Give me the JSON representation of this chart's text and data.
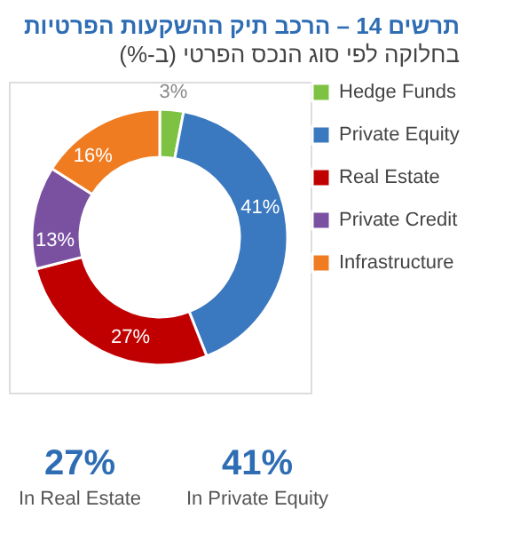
{
  "chart_data": {
    "type": "donut",
    "title": "תרשים 14 – הרכב תיק ההשקעות הפרטיות",
    "subtitle": "בחלוקה לפי סוג הנכס הפרטי (ב-%)",
    "categories": [
      "Hedge Funds",
      "Private Equity",
      "Real Estate",
      "Private Credit",
      "Infrastructure"
    ],
    "values": [
      3,
      41,
      27,
      13,
      16
    ],
    "colors": [
      "#7dc242",
      "#3a78bf",
      "#c00000",
      "#7a51a1",
      "#f07c22"
    ],
    "value_labels": [
      "3%",
      "41%",
      "27%",
      "13%",
      "16%"
    ],
    "legend": "right",
    "annotations": [
      "27%",
      "In Real Estate",
      "41%",
      "In Private Equity"
    ]
  }
}
